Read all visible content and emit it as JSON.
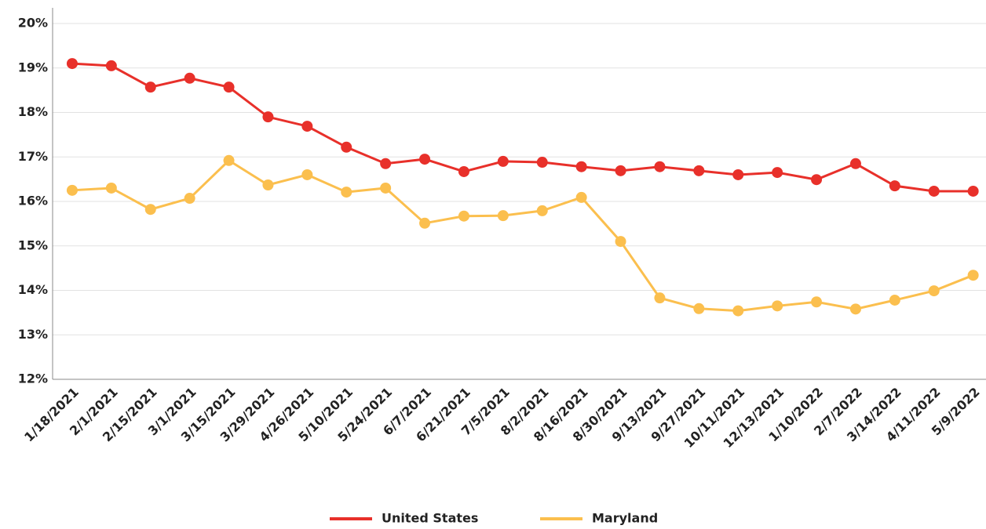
{
  "chart_data": {
    "type": "line",
    "categories": [
      "1/18/2021",
      "2/1/2021",
      "2/15/2021",
      "3/1/2021",
      "3/15/2021",
      "3/29/2021",
      "4/26/2021",
      "5/10/2021",
      "5/24/2021",
      "6/7/2021",
      "6/21/2021",
      "7/5/2021",
      "8/2/2021",
      "8/16/2021",
      "8/30/2021",
      "9/13/2021",
      "9/27/2021",
      "10/11/2021",
      "12/13/2021",
      "1/10/2022",
      "2/7/2022",
      "3/14/2022",
      "4/11/2022",
      "5/9/2022"
    ],
    "series": [
      {
        "name": "United States",
        "color": "#e8302a",
        "values": [
          19.1,
          19.05,
          18.57,
          18.77,
          18.57,
          17.9,
          17.69,
          17.22,
          16.85,
          16.95,
          16.67,
          16.9,
          16.88,
          16.78,
          16.69,
          16.78,
          16.69,
          16.6,
          16.65,
          16.49,
          16.85,
          16.35,
          16.23,
          16.23
        ]
      },
      {
        "name": "Maryland",
        "color": "#fbbf4e",
        "values": [
          16.25,
          16.3,
          15.82,
          16.07,
          16.92,
          16.37,
          16.6,
          16.21,
          16.3,
          15.51,
          15.67,
          15.68,
          15.79,
          16.09,
          15.1,
          13.83,
          13.59,
          13.54,
          13.65,
          13.74,
          13.58,
          13.78,
          13.99,
          14.34
        ]
      }
    ],
    "ylim": [
      12,
      20
    ],
    "yticks": [
      {
        "value": 12,
        "label": "12%"
      },
      {
        "value": 13,
        "label": "13%"
      },
      {
        "value": 14,
        "label": "14%"
      },
      {
        "value": 15,
        "label": "15%"
      },
      {
        "value": 16,
        "label": "16%"
      },
      {
        "value": 17,
        "label": "17%"
      },
      {
        "value": 18,
        "label": "18%"
      },
      {
        "value": 19,
        "label": "19%"
      },
      {
        "value": 20,
        "label": "20%"
      }
    ],
    "grid": true,
    "legend": "bottom"
  }
}
